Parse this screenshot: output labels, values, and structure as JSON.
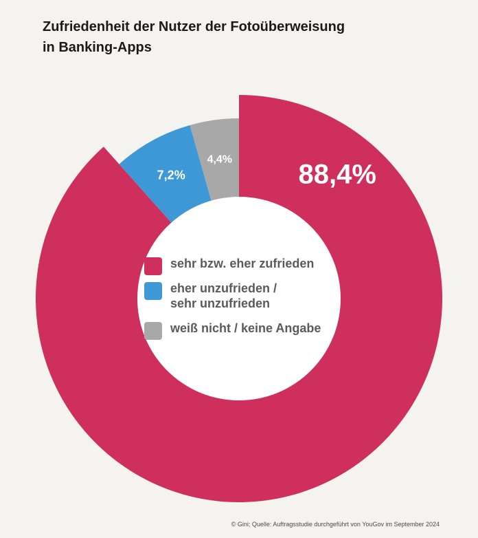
{
  "title_lines": [
    "Zufriedenheit der Nutzer der Fotoüberweisung",
    "in Banking-Apps"
  ],
  "chart_data": {
    "type": "pie",
    "variant": "donut",
    "start": "12 o'clock, clockwise",
    "slices": [
      {
        "label": "sehr bzw. eher zufrieden",
        "value": 88.4,
        "value_label": "88,4%",
        "color": "#cf2f5c"
      },
      {
        "label": "eher unzufrieden / sehr unzufrieden",
        "value": 7.2,
        "value_label": "7,2%",
        "color": "#3e98d6"
      },
      {
        "label": "weiß nicht / keine Angabe",
        "value": 4.4,
        "value_label": "4,4%",
        "color": "#a8a8a8"
      }
    ],
    "legend_position": "center"
  },
  "legend": [
    {
      "lines": [
        "sehr bzw. eher zufrieden"
      ],
      "color": "#cf2f5c"
    },
    {
      "lines": [
        "eher unzufrieden /",
        "sehr unzufrieden"
      ],
      "color": "#3e98d6"
    },
    {
      "lines": [
        "weiß nicht / keine Angabe"
      ],
      "color": "#a8a8a8"
    }
  ],
  "source": "© Gini; Quelle: Auftragsstudie durchgeführt von YouGov im September 2024"
}
